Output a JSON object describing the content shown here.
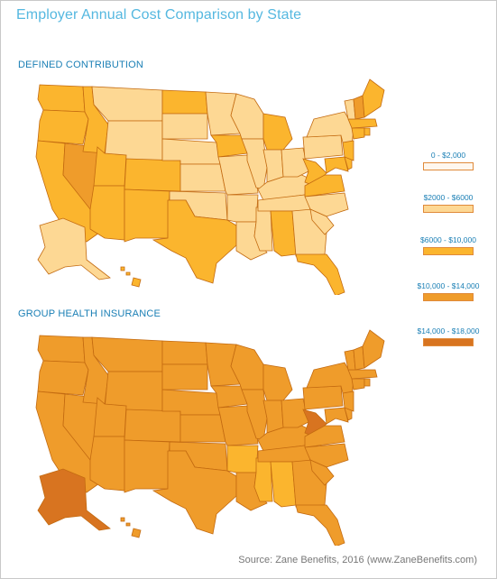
{
  "title": "Employer Annual Cost Comparison by State",
  "maps": [
    {
      "label": "DEFINED CONTRIBUTION",
      "states": {
        "WA": "c3",
        "OR": "c3",
        "CA": "c3",
        "NV": "c4",
        "ID": "c3",
        "MT": "c2",
        "WY": "c2",
        "UT": "c3",
        "AZ": "c3",
        "CO": "c3",
        "NM": "c3",
        "ND": "c3",
        "SD": "c2",
        "NE": "c2",
        "KS": "c2",
        "OK": "c2",
        "TX": "c3",
        "MN": "c2",
        "IA": "c3",
        "MO": "c2",
        "AR": "c2",
        "LA": "c2",
        "WI": "c2",
        "IL": "c2",
        "MS": "c2",
        "MI": "c3",
        "IN": "c2",
        "KY": "c2",
        "TN": "c2",
        "AL": "c3",
        "OH": "c2",
        "GA": "c2",
        "FL": "c3",
        "WV": "c3",
        "VA": "c3",
        "NC": "c2",
        "SC": "c2",
        "PA": "c2",
        "NY": "c2",
        "MD": "c3",
        "DE": "c3",
        "NJ": "c3",
        "CT": "c3",
        "RI": "c3",
        "MA": "c3",
        "VT": "c2",
        "NH": "c4",
        "ME": "c3",
        "AK": "c2",
        "HI": "c3"
      }
    },
    {
      "label": "GROUP HEALTH INSURANCE",
      "states": {
        "WA": "c4",
        "OR": "c4",
        "CA": "c4",
        "NV": "c4",
        "ID": "c4",
        "MT": "c4",
        "WY": "c4",
        "UT": "c4",
        "AZ": "c4",
        "CO": "c4",
        "NM": "c4",
        "ND": "c4",
        "SD": "c4",
        "NE": "c4",
        "KS": "c4",
        "OK": "c4",
        "TX": "c4",
        "MN": "c4",
        "IA": "c4",
        "MO": "c4",
        "AR": "c3",
        "LA": "c4",
        "WI": "c4",
        "IL": "c4",
        "MS": "c3",
        "MI": "c4",
        "IN": "c4",
        "KY": "c4",
        "TN": "c4",
        "AL": "c3",
        "OH": "c4",
        "GA": "c4",
        "FL": "c4",
        "WV": "c5",
        "VA": "c4",
        "NC": "c4",
        "SC": "c4",
        "PA": "c4",
        "NY": "c4",
        "MD": "c4",
        "DE": "c4",
        "NJ": "c4",
        "CT": "c4",
        "RI": "c4",
        "MA": "c4",
        "VT": "c4",
        "NH": "c4",
        "ME": "c4",
        "AK": "c5",
        "HI": "c4"
      }
    }
  ],
  "legend": [
    {
      "key": "c1",
      "label": "0 - $2,000",
      "color": "#fff7ee"
    },
    {
      "key": "c2",
      "label": "$2000 - $6000",
      "color": "#fdd894"
    },
    {
      "key": "c3",
      "label": "$6000 - $10,000",
      "color": "#fbb52e"
    },
    {
      "key": "c4",
      "label": "$10,000 - $14,000",
      "color": "#ef9c2b"
    },
    {
      "key": "c5",
      "label": "$14,000 - $18,000",
      "color": "#d87420"
    }
  ],
  "source": "Source: Zane Benefits, 2016 (www.ZaneBenefits.com)"
}
